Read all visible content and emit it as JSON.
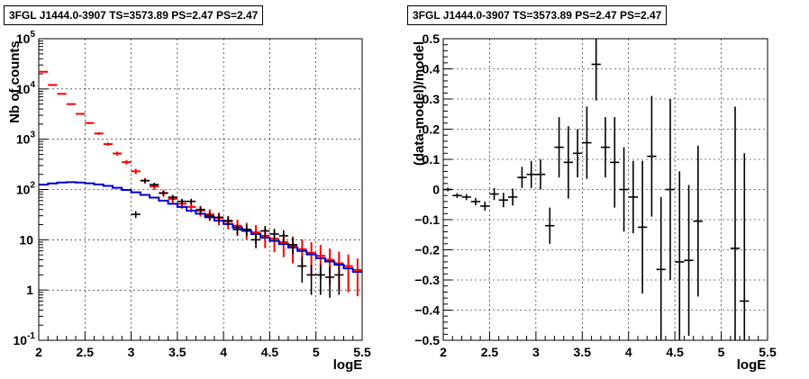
{
  "chart_data": [
    {
      "type": "scatter",
      "title": "3FGL J1444.0-3907 TS=3573.89 PS=2.47 PS=2.47",
      "xlabel": "logE",
      "ylabel": "Nb of counts",
      "xlim": [
        2,
        5.5
      ],
      "ylim": [
        0.1,
        100000
      ],
      "log_y": true,
      "grid": true,
      "x_ticks": [
        "2",
        "2.5",
        "3",
        "3.5",
        "4",
        "4.5",
        "5",
        "5.5"
      ],
      "y_ticks": [
        "10^-1",
        "1",
        "10",
        "10^2",
        "10^3",
        "10^4",
        "10^5"
      ],
      "colors": {
        "data": "#000000",
        "model_total": "#ff0000",
        "source_model": "#0000cc"
      },
      "series": [
        {
          "kind": "data",
          "x": [
            3.05,
            3.15,
            3.25,
            3.35,
            3.45,
            3.55,
            3.65,
            3.75,
            3.85,
            3.95,
            4.05,
            4.15,
            4.25,
            4.35,
            4.45,
            4.55,
            4.65,
            4.75,
            4.85,
            4.95,
            5.05,
            5.15,
            5.25
          ],
          "y": [
            32,
            150,
            125,
            85,
            70,
            58,
            58,
            40,
            30,
            28,
            24,
            16,
            16,
            10,
            15,
            13,
            12,
            8,
            3,
            2,
            2,
            1.8,
            2
          ],
          "yerr_low": [
            5,
            12,
            11,
            9,
            8,
            7.5,
            7.5,
            6.3,
            5.5,
            5.3,
            4.9,
            4,
            4,
            3.2,
            3.9,
            3.6,
            3.5,
            2.8,
            1.6,
            1.2,
            1.2,
            1.1,
            1.2
          ],
          "yerr_high": [
            5,
            12,
            11,
            9,
            8,
            7.5,
            7.5,
            6.3,
            5.5,
            5.3,
            4.9,
            4,
            4,
            3.2,
            3.9,
            3.6,
            3.5,
            2.8,
            1.6,
            1.2,
            1.2,
            1.1,
            1.2
          ]
        },
        {
          "kind": "model_total",
          "x": [
            2.05,
            2.15,
            2.25,
            2.35,
            2.45,
            2.55,
            2.65,
            2.75,
            2.85,
            2.95,
            3.05,
            3.15,
            3.25,
            3.35,
            3.45,
            3.55,
            3.65,
            3.75,
            3.85,
            3.95,
            4.05,
            4.15,
            4.25,
            4.35,
            4.45,
            4.55,
            4.65,
            4.75,
            4.85,
            4.95,
            5.05,
            5.15,
            5.25,
            5.35,
            5.45
          ],
          "y": [
            22000,
            12000,
            8000,
            5000,
            3200,
            2100,
            1300,
            800,
            520,
            350,
            230,
            150,
            115,
            85,
            65,
            52,
            45,
            38,
            32,
            27,
            23,
            19,
            16,
            14,
            12,
            10.5,
            9,
            7.5,
            6.5,
            5.5,
            4.8,
            4,
            3.4,
            3,
            2.5
          ],
          "yerr_rel": [
            0.02,
            0.03,
            0.03,
            0.03,
            0.04,
            0.05,
            0.06,
            0.07,
            0.09,
            0.1,
            0.12,
            0.13,
            0.15,
            0.16,
            0.18,
            0.2,
            0.22,
            0.24,
            0.26,
            0.28,
            0.3,
            0.33,
            0.36,
            0.4,
            0.43,
            0.46,
            0.5,
            0.55,
            0.58,
            0.62,
            0.65,
            0.68,
            0.7,
            0.7,
            0.7
          ]
        },
        {
          "kind": "source_model",
          "x": [
            2.05,
            2.15,
            2.25,
            2.35,
            2.45,
            2.55,
            2.65,
            2.75,
            2.85,
            2.95,
            3.05,
            3.15,
            3.25,
            3.35,
            3.45,
            3.55,
            3.65,
            3.75,
            3.85,
            3.95,
            4.05,
            4.15,
            4.25,
            4.35,
            4.45,
            4.55,
            4.65,
            4.75,
            4.85,
            4.95,
            5.05,
            5.15,
            5.25,
            5.35,
            5.45
          ],
          "y": [
            125,
            132,
            138,
            140,
            138,
            133,
            126,
            118,
            108,
            98,
            88,
            78,
            69,
            60,
            52,
            45,
            38,
            33,
            28,
            24,
            20.5,
            17.5,
            15,
            13,
            11,
            9.5,
            8.2,
            7,
            6,
            5.1,
            4.3,
            3.7,
            3.2,
            2.7,
            2.3
          ]
        }
      ]
    },
    {
      "type": "scatter",
      "title": "3FGL J1444.0-3907 TS=3573.89 PS=2.47 PS=2.47",
      "xlabel": "logE",
      "ylabel": "(data-model)/model",
      "xlim": [
        2,
        5.5
      ],
      "ylim": [
        -0.5,
        0.5
      ],
      "grid": true,
      "x_ticks": [
        "2",
        "2.5",
        "3",
        "3.5",
        "4",
        "4.5",
        "5",
        "5.5"
      ],
      "y_ticks": [
        "−0.5",
        "−0.4",
        "−0.3",
        "−0.2",
        "−0.1",
        "0",
        "0.1",
        "0.2",
        "0.3",
        "0.4",
        "0.5"
      ],
      "series": [
        {
          "kind": "residuals",
          "x": [
            2.05,
            2.15,
            2.25,
            2.35,
            2.45,
            2.55,
            2.65,
            2.75,
            2.85,
            2.95,
            3.05,
            3.15,
            3.25,
            3.35,
            3.45,
            3.55,
            3.65,
            3.75,
            3.85,
            3.95,
            4.05,
            4.15,
            4.25,
            4.35,
            4.45,
            4.55,
            4.65,
            4.75,
            5.15,
            5.25
          ],
          "y": [
            0.0,
            -0.02,
            -0.025,
            -0.04,
            -0.055,
            -0.015,
            -0.035,
            -0.025,
            0.04,
            0.05,
            0.05,
            -0.12,
            0.14,
            0.09,
            0.12,
            0.155,
            0.415,
            0.14,
            0.09,
            0.0,
            -0.025,
            -0.125,
            0.11,
            -0.265,
            0.0,
            -0.24,
            -0.235,
            -0.105,
            -0.195,
            -0.37
          ],
          "yerr": [
            0.006,
            0.008,
            0.01,
            0.012,
            0.015,
            0.02,
            0.024,
            0.028,
            0.035,
            0.045,
            0.05,
            0.06,
            0.1,
            0.12,
            0.08,
            0.12,
            0.12,
            0.1,
            0.15,
            0.14,
            0.12,
            0.22,
            0.2,
            0.24,
            0.3,
            0.3,
            0.25,
            0.25,
            0.47,
            0.49
          ]
        }
      ]
    }
  ]
}
